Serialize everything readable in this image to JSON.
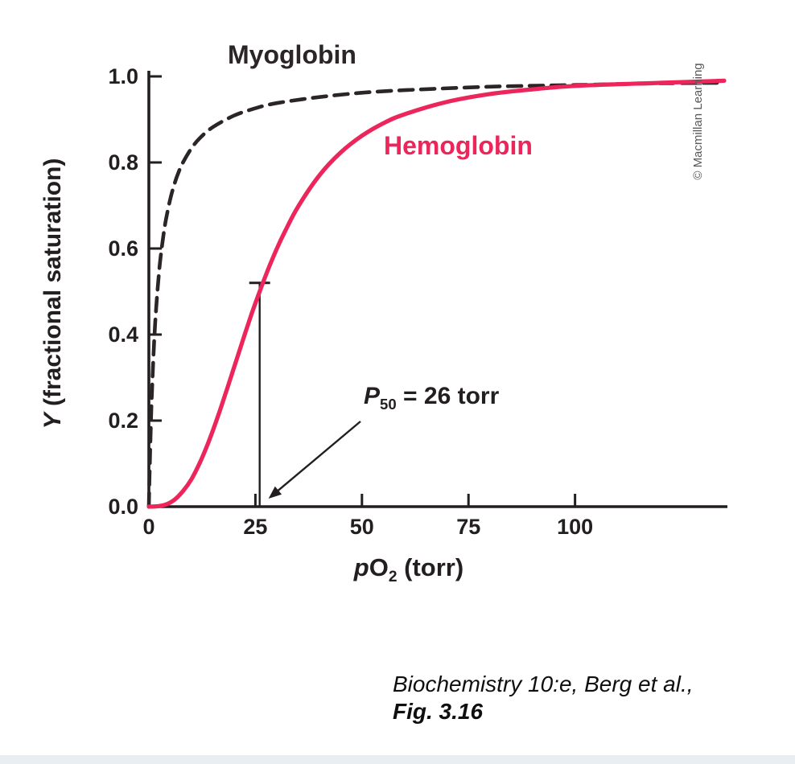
{
  "chart_data": {
    "type": "line",
    "title": "",
    "xlabel": {
      "italic": "p",
      "main": "O",
      "sub": "2",
      "rest": " (torr)"
    },
    "ylabel": {
      "italic": "Y",
      "rest": " (fractional saturation)"
    },
    "xlim": [
      0,
      135
    ],
    "ylim": [
      0,
      1
    ],
    "x_ticks": [
      0,
      25,
      50,
      75,
      100
    ],
    "y_ticks": [
      0,
      0.2,
      0.4,
      0.6,
      0.8,
      1
    ],
    "y_tick_labels": [
      "0.0",
      "0.2",
      "0.4",
      "0.6",
      "0.8",
      "1.0"
    ],
    "grid": false,
    "legend_position": "inline-curve-labels",
    "series": [
      {
        "name": "Myoglobin",
        "style": "dashed",
        "color": "#2b2528",
        "x": [
          0,
          0.15,
          0.3,
          0.5,
          0.75,
          1,
          1.25,
          1.5,
          2,
          2.5,
          3,
          3.5,
          4,
          5,
          6,
          7,
          8,
          10,
          12,
          15,
          20,
          25,
          30,
          40,
          50,
          60,
          80,
          100,
          120,
          135
        ],
        "y": [
          0,
          0.07,
          0.13,
          0.2,
          0.273,
          0.333,
          0.385,
          0.429,
          0.5,
          0.556,
          0.6,
          0.636,
          0.667,
          0.714,
          0.75,
          0.778,
          0.8,
          0.833,
          0.857,
          0.882,
          0.909,
          0.926,
          0.938,
          0.952,
          0.962,
          0.968,
          0.976,
          0.98,
          0.984,
          0.985
        ]
      },
      {
        "name": "Hemoglobin",
        "style": "solid",
        "color": "#ec265a",
        "x": [
          0,
          2,
          4,
          6,
          8,
          10,
          12,
          14,
          16,
          18,
          20,
          22,
          24,
          26,
          28,
          30,
          32,
          35,
          40,
          45,
          50,
          55,
          60,
          70,
          80,
          90,
          100,
          120,
          135
        ],
        "y": [
          0,
          0.001,
          0.005,
          0.016,
          0.036,
          0.064,
          0.103,
          0.15,
          0.204,
          0.263,
          0.324,
          0.385,
          0.445,
          0.5,
          0.552,
          0.599,
          0.641,
          0.697,
          0.77,
          0.823,
          0.862,
          0.891,
          0.912,
          0.941,
          0.959,
          0.97,
          0.978,
          0.985,
          0.99
        ]
      }
    ],
    "annotations": {
      "p50": {
        "symbol": "P",
        "subscript": "50",
        "text": " = 26 torr",
        "value_torr": 26,
        "marker_y": 0.52
      }
    }
  },
  "credit": "© Macmillan Learning",
  "caption": {
    "line1": "Biochemistry 10:e, Berg et al.,",
    "line2": "Fig. 3.16"
  },
  "colors": {
    "axis": "#231f20",
    "myoglobin": "#2b2528",
    "hemoglobin": "#ec265a",
    "footer_strip": "#e9eef3"
  }
}
